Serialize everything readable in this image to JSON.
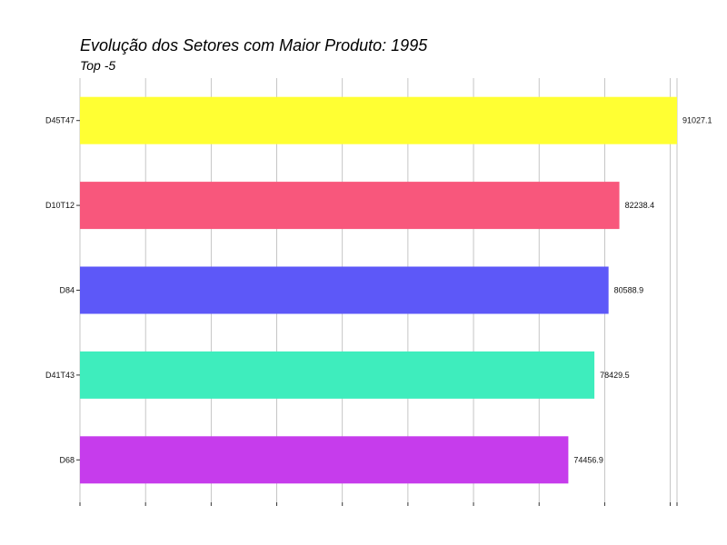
{
  "chart_data": {
    "type": "bar",
    "orientation": "horizontal",
    "title": "Evolução dos Setores com Maior Produto: 1995",
    "subtitle": "Top -5",
    "xlabel": "",
    "ylabel": "",
    "xlim": [
      0,
      91027.1
    ],
    "grid": true,
    "legend": "none",
    "categories": [
      "D45T47",
      "D10T12",
      "D84",
      "D41T43",
      "D68"
    ],
    "values": [
      91027.1,
      82238.4,
      80588.9,
      78429.5,
      74456.9
    ],
    "value_labels": [
      "91027.1",
      "82238.4",
      "80588.9",
      "78429.5",
      "74456.9"
    ],
    "colors": [
      "#ffff33",
      "#f8577c",
      "#5d58f8",
      "#3eedbd",
      "#c63cec"
    ]
  }
}
